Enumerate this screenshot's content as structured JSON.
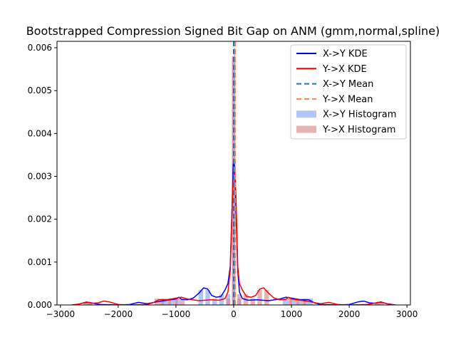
{
  "chart_data": {
    "type": "histogram_kde",
    "title": "Bootstrapped Compression Signed Bit Gap on ANM (gmm,normal,spline)",
    "xlabel": "",
    "ylabel": "",
    "xlim": [
      -3060,
      3060
    ],
    "ylim": [
      0,
      0.00615
    ],
    "xticks": [
      -3000,
      -2000,
      -1000,
      0,
      1000,
      2000,
      3000
    ],
    "xtick_labels": [
      "−3000",
      "−2000",
      "−1000",
      "0",
      "1000",
      "2000",
      "3000"
    ],
    "yticks": [
      0,
      0.001,
      0.002,
      0.003,
      0.004,
      0.005,
      0.006
    ],
    "ytick_labels": [
      "0.000",
      "0.001",
      "0.002",
      "0.003",
      "0.004",
      "0.005",
      "0.006"
    ],
    "legend_position": "top-right",
    "colors": {
      "xy_kde": "#0000ff",
      "yx_kde": "#ff0000",
      "xy_mean": "#1f77b4",
      "yx_mean": "#ff7f50",
      "xy_hist": "#7f9fef",
      "yx_hist": "#d98080"
    },
    "legend": [
      {
        "label": "X->Y KDE",
        "kind": "line",
        "color": "#0000ff"
      },
      {
        "label": "Y->X KDE",
        "kind": "line",
        "color": "#ff0000"
      },
      {
        "label": "X->Y Mean",
        "kind": "dashed",
        "color": "#1f77b4"
      },
      {
        "label": "Y->X Mean",
        "kind": "dashed",
        "color": "#ff7f50"
      },
      {
        "label": "X->Y Histogram",
        "kind": "patch",
        "color": "#7f9fef"
      },
      {
        "label": "Y->X Histogram",
        "kind": "patch",
        "color": "#d98080"
      }
    ],
    "means": {
      "xy": 0,
      "yx": 25
    },
    "histograms": [
      {
        "name": "X->Y Histogram",
        "bins": [
          [
            -2530,
            -2450,
            5e-05
          ],
          [
            -1250,
            -1170,
            0.00015
          ],
          [
            -1130,
            -1050,
            0.00015
          ],
          [
            -1010,
            -930,
            0.00015
          ],
          [
            -610,
            -530,
            0.00035
          ],
          [
            -490,
            -410,
            0.00035
          ],
          [
            -370,
            -290,
            0.00015
          ],
          [
            -250,
            -170,
            0.00025
          ],
          [
            -130,
            -60,
            0.00025
          ],
          [
            -30,
            0,
            0.0058
          ],
          [
            0,
            30,
            0.0058
          ],
          [
            60,
            130,
            0.00015
          ],
          [
            850,
            930,
            0.00015
          ],
          [
            970,
            1050,
            0.00015
          ],
          [
            1090,
            1170,
            0.00015
          ],
          [
            1210,
            1290,
            0.00015
          ],
          [
            1290,
            1370,
            0.00015
          ],
          [
            2450,
            2530,
            5e-05
          ],
          [
            2530,
            2600,
            5e-05
          ]
        ]
      },
      {
        "name": "Y->X Histogram",
        "bins": [
          [
            -2600,
            -2530,
            5e-05
          ],
          [
            -2530,
            -2450,
            5e-05
          ],
          [
            -1370,
            -1290,
            0.00015
          ],
          [
            -1290,
            -1210,
            0.00015
          ],
          [
            -1170,
            -1090,
            0.00015
          ],
          [
            -1050,
            -970,
            0.00015
          ],
          [
            -930,
            -850,
            0.00015
          ],
          [
            -130,
            -60,
            0.00015
          ],
          [
            -30,
            0,
            0.0058
          ],
          [
            0,
            30,
            0.006
          ],
          [
            60,
            130,
            0.00025
          ],
          [
            170,
            250,
            0.00025
          ],
          [
            290,
            370,
            0.00015
          ],
          [
            410,
            490,
            0.00035
          ],
          [
            530,
            610,
            0.00035
          ],
          [
            930,
            1010,
            0.00015
          ],
          [
            1050,
            1130,
            0.00015
          ],
          [
            1170,
            1250,
            0.00015
          ],
          [
            2450,
            2530,
            5e-05
          ]
        ]
      }
    ],
    "kde_series": [
      {
        "name": "X->Y KDE",
        "points": [
          [
            -2800,
            0
          ],
          [
            -2700,
            1e-05
          ],
          [
            -2600,
            5e-05
          ],
          [
            -2500,
            6e-05
          ],
          [
            -2400,
            3e-05
          ],
          [
            -2300,
            1e-05
          ],
          [
            -2000,
            0
          ],
          [
            -1800,
            1e-05
          ],
          [
            -1650,
            6e-05
          ],
          [
            -1500,
            3e-05
          ],
          [
            -1300,
            8e-05
          ],
          [
            -1100,
            0.00012
          ],
          [
            -1000,
            0.00014
          ],
          [
            -950,
            0.00018
          ],
          [
            -900,
            0.00013
          ],
          [
            -800,
            0.00012
          ],
          [
            -700,
            0.00016
          ],
          [
            -600,
            0.00028
          ],
          [
            -520,
            0.0004
          ],
          [
            -450,
            0.00037
          ],
          [
            -380,
            0.00022
          ],
          [
            -300,
            0.00018
          ],
          [
            -220,
            0.0002
          ],
          [
            -150,
            0.00035
          ],
          [
            -100,
            0.0005
          ],
          [
            -60,
            0.0009
          ],
          [
            -30,
            0.0022
          ],
          [
            -10,
            0.0032
          ],
          [
            0,
            0.0034
          ],
          [
            15,
            0.0032
          ],
          [
            40,
            0.0022
          ],
          [
            70,
            0.0008
          ],
          [
            100,
            0.0003
          ],
          [
            150,
            0.00015
          ],
          [
            250,
            0.00011
          ],
          [
            400,
            0.00012
          ],
          [
            600,
            0.0001
          ],
          [
            800,
            0.00014
          ],
          [
            900,
            0.00018
          ],
          [
            1000,
            0.00016
          ],
          [
            1150,
            0.00012
          ],
          [
            1300,
            0.00012
          ],
          [
            1400,
            5e-05
          ],
          [
            1500,
            1e-05
          ],
          [
            1800,
            0
          ],
          [
            2000,
            1e-05
          ],
          [
            2150,
            7e-05
          ],
          [
            2250,
            9e-05
          ],
          [
            2350,
            5e-05
          ],
          [
            2450,
            4e-05
          ],
          [
            2550,
            7e-05
          ],
          [
            2650,
            3e-05
          ],
          [
            2800,
            0
          ]
        ]
      },
      {
        "name": "Y->X KDE",
        "points": [
          [
            -2800,
            0
          ],
          [
            -2650,
            3e-05
          ],
          [
            -2550,
            7e-05
          ],
          [
            -2450,
            4e-05
          ],
          [
            -2350,
            5e-05
          ],
          [
            -2250,
            9e-05
          ],
          [
            -2150,
            7e-05
          ],
          [
            -2000,
            1e-05
          ],
          [
            -1800,
            0
          ],
          [
            -1500,
            1e-05
          ],
          [
            -1400,
            5e-05
          ],
          [
            -1300,
            0.00012
          ],
          [
            -1150,
            0.00012
          ],
          [
            -1000,
            0.00016
          ],
          [
            -900,
            0.00018
          ],
          [
            -800,
            0.00014
          ],
          [
            -600,
            0.0001
          ],
          [
            -400,
            0.00012
          ],
          [
            -250,
            0.00011
          ],
          [
            -150,
            0.00015
          ],
          [
            -100,
            0.0003
          ],
          [
            -60,
            0.0008
          ],
          [
            -30,
            0.0022
          ],
          [
            -10,
            0.0029
          ],
          [
            5,
            0.0032
          ],
          [
            20,
            0.0031
          ],
          [
            40,
            0.0025
          ],
          [
            70,
            0.0009
          ],
          [
            100,
            0.0005
          ],
          [
            150,
            0.00035
          ],
          [
            220,
            0.0002
          ],
          [
            300,
            0.00018
          ],
          [
            380,
            0.00022
          ],
          [
            450,
            0.00037
          ],
          [
            520,
            0.0004
          ],
          [
            600,
            0.00028
          ],
          [
            700,
            0.00016
          ],
          [
            800,
            0.00012
          ],
          [
            900,
            0.00013
          ],
          [
            950,
            0.00018
          ],
          [
            1000,
            0.00014
          ],
          [
            1100,
            0.00012
          ],
          [
            1300,
            8e-05
          ],
          [
            1500,
            3e-05
          ],
          [
            1650,
            6e-05
          ],
          [
            1800,
            1e-05
          ],
          [
            2000,
            0
          ],
          [
            2300,
            1e-05
          ],
          [
            2400,
            3e-05
          ],
          [
            2500,
            6e-05
          ],
          [
            2600,
            5e-05
          ],
          [
            2700,
            1e-05
          ],
          [
            2800,
            0
          ]
        ]
      }
    ]
  }
}
